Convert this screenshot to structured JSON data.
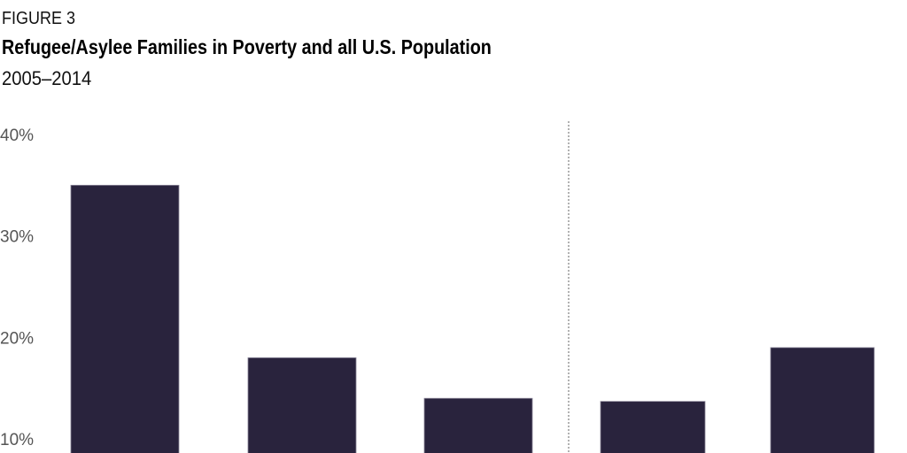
{
  "figure_label": "FIGURE 3",
  "chart_data": {
    "type": "bar",
    "title": "Refugee/Asylee Families in Poverty and all U.S. Population",
    "subtitle": "2005–2014",
    "xlabel": "",
    "ylabel": "",
    "ylim": [
      10,
      40
    ],
    "yticks": [
      "40%",
      "30%",
      "20%",
      "10%"
    ],
    "ytick_values": [
      40,
      30,
      20,
      10
    ],
    "values": [
      35,
      18,
      14,
      13.7,
      19
    ],
    "bar_color": "#29233d",
    "divider": "dotted vertical line between 3rd and 4th bars",
    "grid": false
  }
}
